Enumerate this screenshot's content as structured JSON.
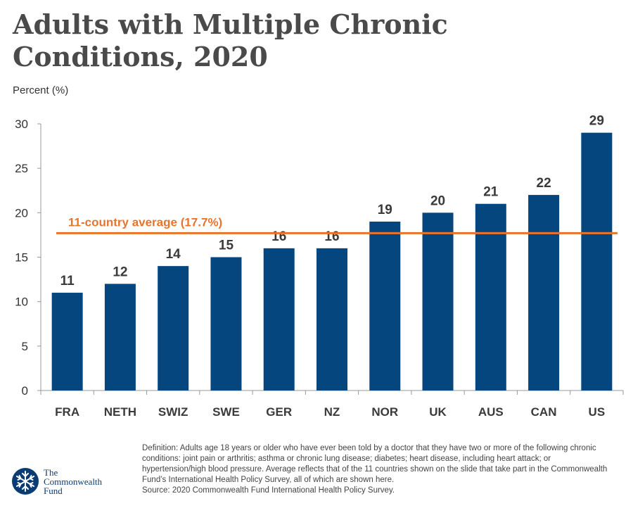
{
  "title": "Adults with Multiple Chronic Conditions, 2020",
  "colors": {
    "bar": "#06467f",
    "average_line": "#e8742a",
    "axis": "#999999",
    "text": "#333333"
  },
  "chart_data": {
    "type": "bar",
    "ylabel": "Percent (%)",
    "categories": [
      "FRA",
      "NETH",
      "SWIZ",
      "SWE",
      "GER",
      "NZ",
      "NOR",
      "UK",
      "AUS",
      "CAN",
      "US"
    ],
    "values": [
      11,
      12,
      14,
      15,
      16,
      16,
      19,
      20,
      21,
      22,
      29
    ],
    "value_labels": [
      "11",
      "12",
      "14",
      "15",
      "16",
      "16",
      "19",
      "20",
      "21",
      "22",
      "29"
    ],
    "ylim": [
      0,
      30
    ],
    "yticks": [
      0,
      5,
      10,
      15,
      20,
      25,
      30
    ],
    "reference_line": {
      "value": 17.7,
      "label": "11-country average (17.7%)"
    },
    "grid": false
  },
  "footnote": {
    "definition": "Definition: Adults age 18 years or older who have ever been told by a doctor that they have two or more of the following chronic conditions: joint pain or arthritis; asthma or chronic lung disease; diabetes; heart disease, including heart attack; or hypertension/high blood pressure. Average reflects that of the 11 countries shown on the slide that take part in the Commonwealth Fund’s International Health Policy Survey, all of which are shown here.",
    "source": "Source: 2020 Commonwealth Fund International Health Policy Survey."
  },
  "logo": {
    "line1": "The",
    "line2": "Commonwealth",
    "line3": "Fund",
    "icon": "snowflake-icon"
  }
}
